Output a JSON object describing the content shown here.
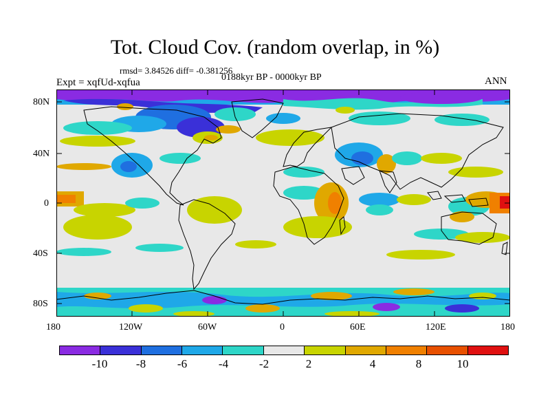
{
  "header": {
    "title": "Tot. Cloud Cov. (random overlap, in %)",
    "stats": "rmsd= 3.84526 diff= -0.381256",
    "period": "0188kyr BP - 0000kyr BP",
    "experiment": "Expt = xqfUd-xqfua",
    "season": "ANN"
  },
  "axes": {
    "lat_labels": [
      "80N",
      "40N",
      "0",
      "40S",
      "80S"
    ],
    "lon_labels": [
      "180",
      "120W",
      "60W",
      "0",
      "60E",
      "120E",
      "180"
    ]
  },
  "colorbar": {
    "labels": [
      "-10",
      "-8",
      "-6",
      "-4",
      "-2",
      "2",
      "4",
      "8",
      "10"
    ],
    "colors": [
      "#8a2be2",
      "#3a30d8",
      "#1f6fe0",
      "#1fa8e8",
      "#2ed6c8",
      "#e8e8e8",
      "#c8d400",
      "#e0a800",
      "#f08000",
      "#e85000",
      "#e01010"
    ]
  },
  "colors": {
    "ocean_land_neutral": "#e8e8e8",
    "coastline": "#000000"
  }
}
